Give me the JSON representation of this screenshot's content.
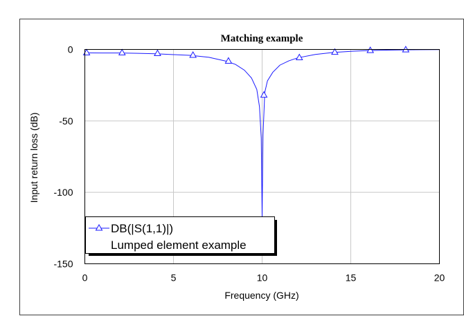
{
  "chart_data": {
    "type": "line",
    "title": "Matching example",
    "xlabel": "Frequency (GHz)",
    "ylabel": "Input return loss (dB)",
    "xlim": [
      0,
      20
    ],
    "ylim": [
      -150,
      0
    ],
    "x_ticks": [
      0,
      5,
      10,
      15,
      20
    ],
    "y_ticks": [
      0,
      -50,
      -100,
      -150
    ],
    "x_tick_labels": [
      "0",
      "5",
      "10",
      "15",
      "20"
    ],
    "y_tick_labels": [
      "0",
      "-50",
      "-100",
      "-150"
    ],
    "grid": true,
    "legend_position": "bottom-left",
    "series": [
      {
        "name": "DB(|S(1,1)|)",
        "subtitle": "Lumped element example",
        "color": "#1a1aff",
        "marker": "triangle-open",
        "line_points": [
          [
            0,
            -2.4
          ],
          [
            1,
            -2.5
          ],
          [
            2,
            -2.5
          ],
          [
            3,
            -2.7
          ],
          [
            4,
            -3.0
          ],
          [
            5,
            -3.6
          ],
          [
            6,
            -4.2
          ],
          [
            7,
            -5.5
          ],
          [
            8,
            -8.3
          ],
          [
            8.5,
            -10.5
          ],
          [
            9,
            -14.5
          ],
          [
            9.4,
            -20
          ],
          [
            9.7,
            -28
          ],
          [
            9.85,
            -40
          ],
          [
            9.95,
            -62
          ],
          [
            10.0,
            -117
          ],
          [
            10.05,
            -60
          ],
          [
            10.15,
            -30
          ],
          [
            10.3,
            -22
          ],
          [
            10.6,
            -16
          ],
          [
            11,
            -11
          ],
          [
            11.5,
            -8
          ],
          [
            12,
            -5.9
          ],
          [
            13,
            -3.5
          ],
          [
            14,
            -2.1
          ],
          [
            15,
            -1.3
          ],
          [
            16,
            -0.8
          ],
          [
            17,
            -0.5
          ],
          [
            18,
            -0.3
          ],
          [
            19,
            -0.2
          ],
          [
            20,
            -0.1
          ]
        ],
        "marker_points": [
          [
            0.1,
            -2.4
          ],
          [
            2.1,
            -2.4
          ],
          [
            4.1,
            -2.9
          ],
          [
            6.1,
            -4.1
          ],
          [
            8.1,
            -8.2
          ],
          [
            10.1,
            -32
          ],
          [
            12.1,
            -5.8
          ],
          [
            14.1,
            -2.0
          ],
          [
            16.1,
            -0.8
          ],
          [
            18.1,
            -0.3
          ]
        ]
      }
    ]
  }
}
